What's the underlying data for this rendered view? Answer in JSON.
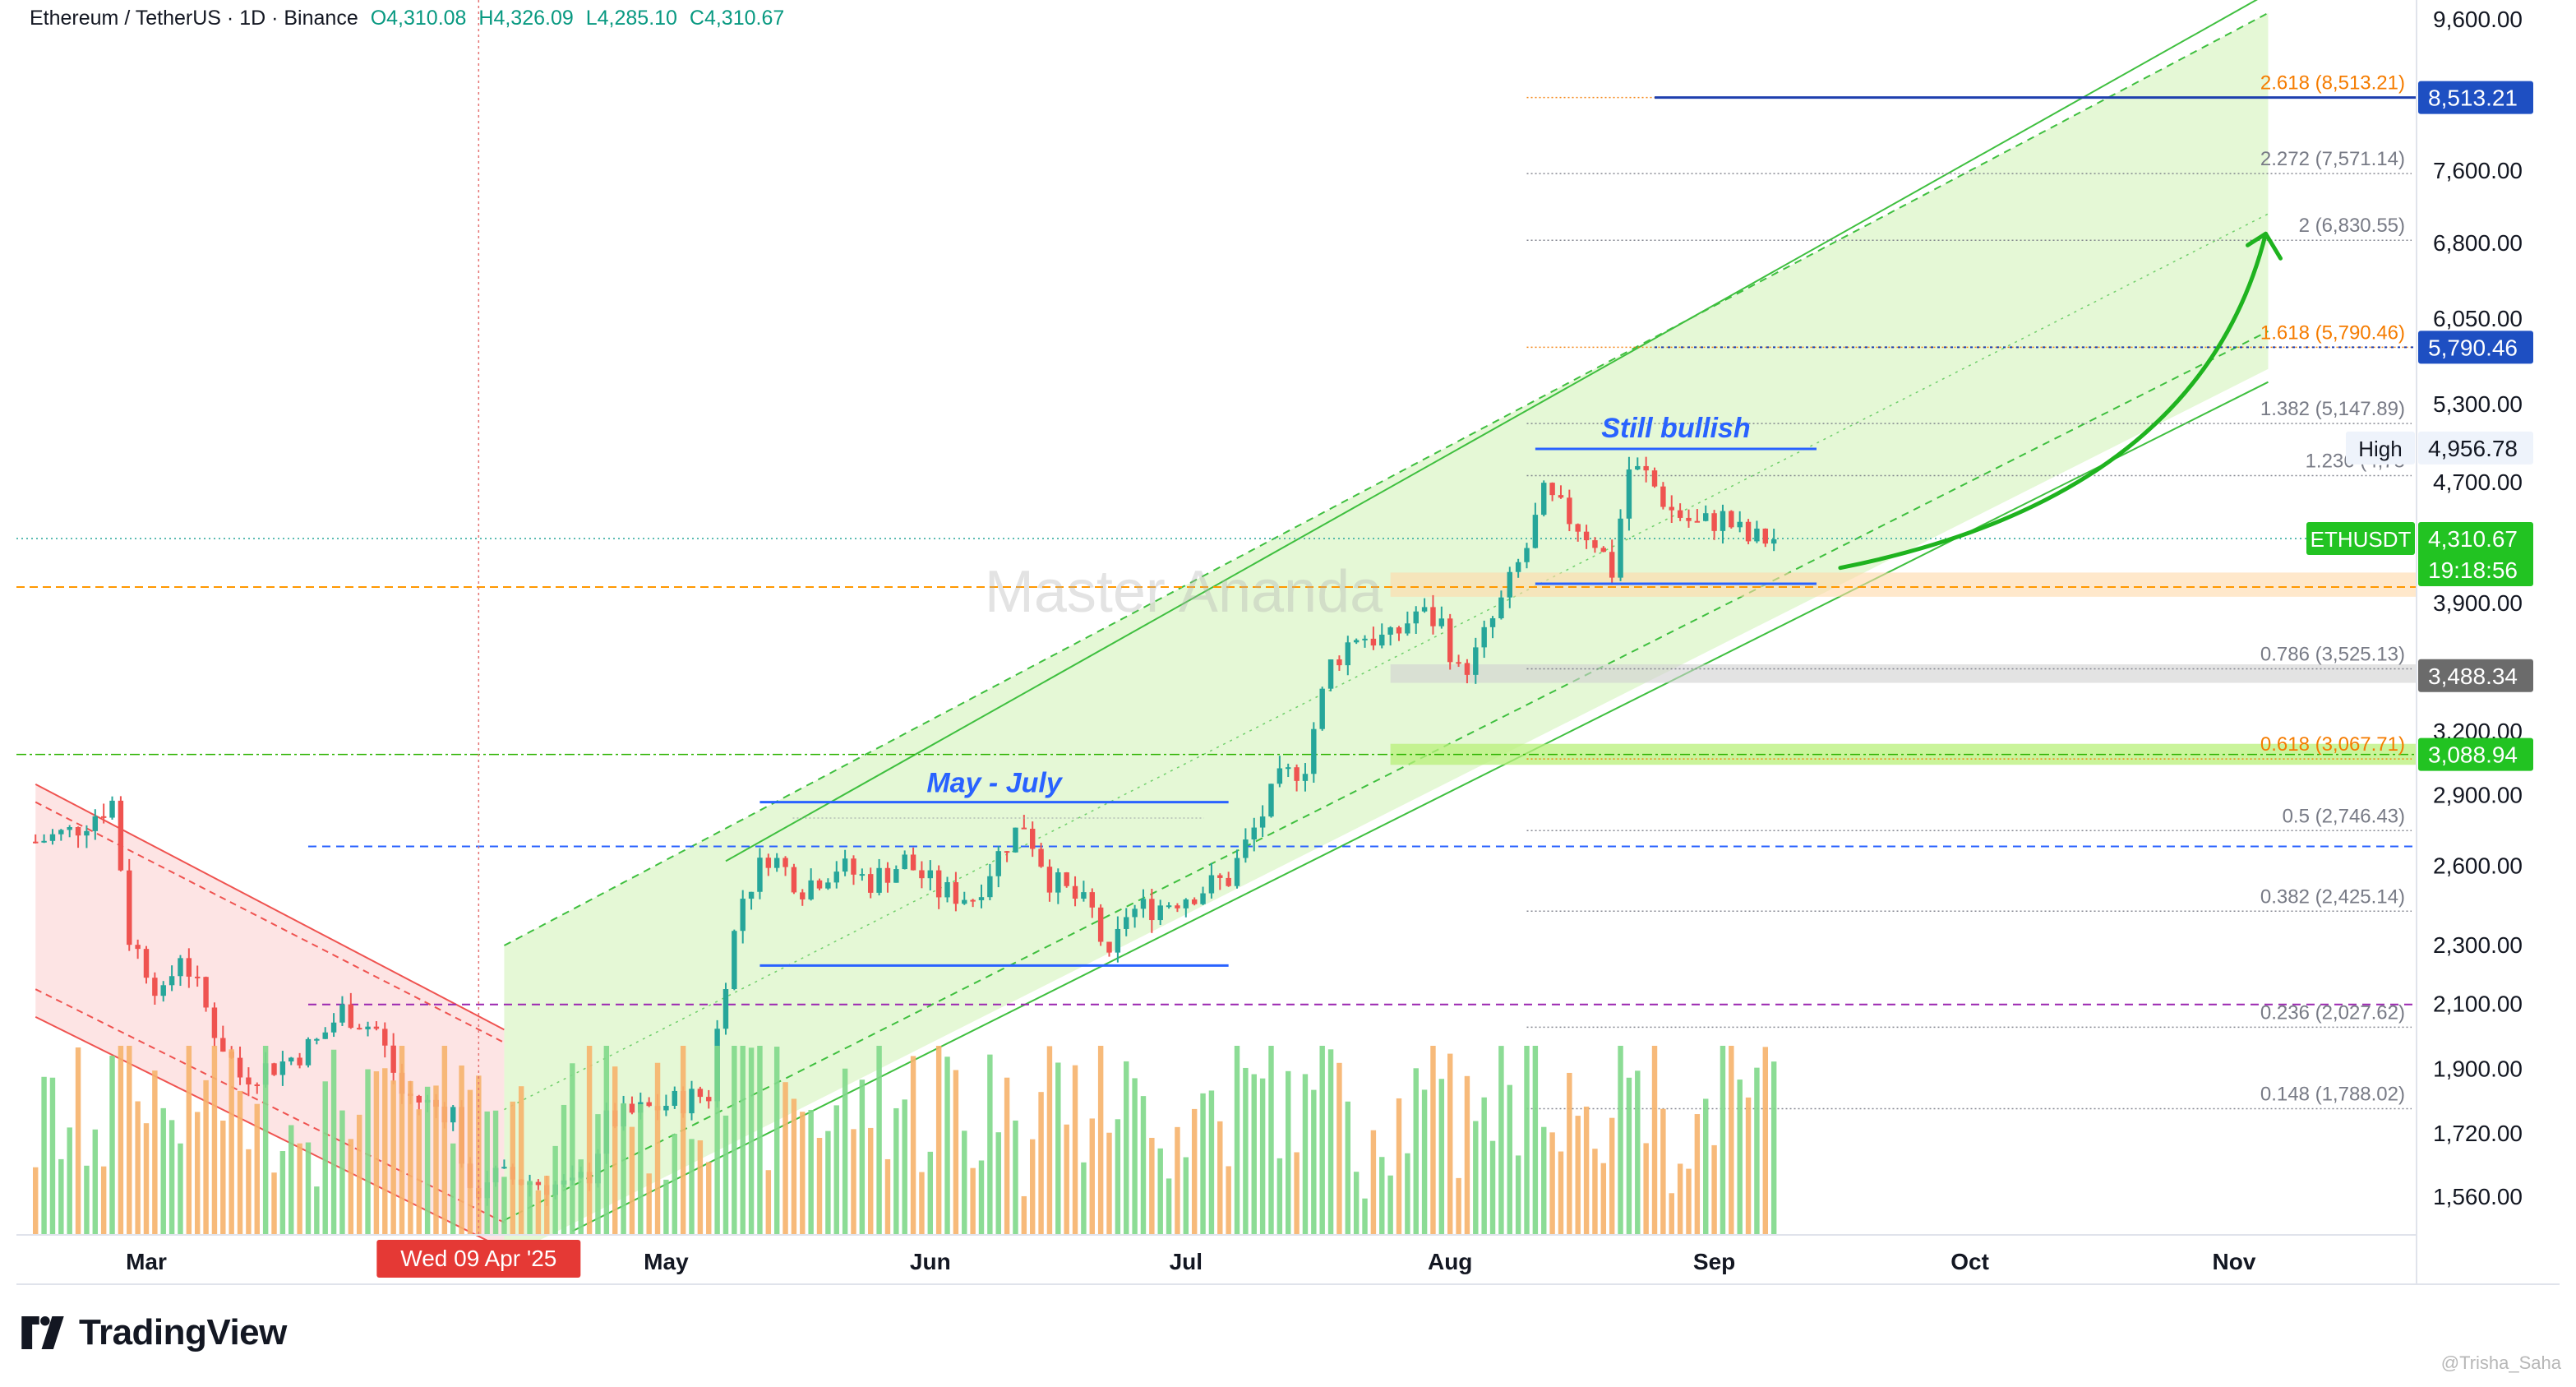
{
  "header": {
    "symbol": "Ethereum / TetherUS · 1D · Binance",
    "open": "O4,310.08",
    "high": "H4,326.09",
    "low": "L4,285.10",
    "close": "C4,310.67"
  },
  "brand": {
    "name": "TradingView"
  },
  "watermark": "Master Ananda",
  "credit": "@Trisha_Saha",
  "colors": {
    "up": "#26a69a",
    "down": "#ef5350",
    "channel": "#3fbf3f",
    "channel_fill": "#dcf5c8",
    "downchannel": "#ef5350",
    "downchannel_fill": "#fde1e1",
    "annotation": "#2962ff",
    "fib_orange": "#f57c00",
    "fib_gray": "#787b86",
    "price_label_green": "#22c322",
    "price_label_blue": "#1e4fc2",
    "price_label_gray": "#6b6b6b"
  },
  "chart_data": {
    "type": "candlestick",
    "title": "Ethereum / TetherUS · 1D · Binance",
    "y_scale": "log",
    "ylim": [
      1480,
      9700
    ],
    "x_tick_labels": [
      {
        "label": "Mar",
        "date": "2025-03-01"
      },
      {
        "label": "May",
        "date": "2025-05-01"
      },
      {
        "label": "Jun",
        "date": "2025-06-01"
      },
      {
        "label": "Jul",
        "date": "2025-07-01"
      },
      {
        "label": "Aug",
        "date": "2025-08-01"
      },
      {
        "label": "Sep",
        "date": "2025-09-01"
      },
      {
        "label": "Oct",
        "date": "2025-10-01"
      },
      {
        "label": "Nov",
        "date": "2025-11-01"
      }
    ],
    "y_tick_labels": [
      "9,600.00",
      "7,600.00",
      "6,800.00",
      "6,050.00",
      "5,300.00",
      "4,700.00",
      "3,900.00",
      "3,200.00",
      "2,900.00",
      "2,600.00",
      "2,300.00",
      "2,100.00",
      "1,900.00",
      "1,720.00",
      "1,560.00"
    ],
    "y_tick_values": [
      9600,
      7600,
      6800,
      6050,
      5300,
      4700,
      3900,
      3200,
      2900,
      2600,
      2300,
      2100,
      1900,
      1720,
      1560
    ],
    "crosshair": {
      "date": "2025-04-09",
      "label": "Wed 09 Apr '25"
    },
    "price_path": [
      [
        "2025-02-16",
        2700
      ],
      [
        "2025-02-20",
        2740
      ],
      [
        "2025-02-25",
        2870
      ],
      [
        "2025-02-27",
        2330
      ],
      [
        "2025-03-03",
        2120
      ],
      [
        "2025-03-05",
        2280
      ],
      [
        "2025-03-09",
        2020
      ],
      [
        "2025-03-12",
        1880
      ],
      [
        "2025-03-17",
        1920
      ],
      [
        "2025-03-21",
        1980
      ],
      [
        "2025-03-24",
        2080
      ],
      [
        "2025-03-28",
        2020
      ],
      [
        "2025-03-31",
        1830
      ],
      [
        "2025-04-03",
        1800
      ],
      [
        "2025-04-06",
        1780
      ],
      [
        "2025-04-08",
        1550
      ],
      [
        "2025-04-10",
        1610
      ],
      [
        "2025-04-15",
        1600
      ],
      [
        "2025-04-20",
        1580
      ],
      [
        "2025-04-22",
        1620
      ],
      [
        "2025-04-24",
        1750
      ],
      [
        "2025-04-28",
        1780
      ],
      [
        "2025-05-01",
        1800
      ],
      [
        "2025-05-06",
        1830
      ],
      [
        "2025-05-08",
        2200
      ],
      [
        "2025-05-10",
        2480
      ],
      [
        "2025-05-13",
        2650
      ],
      [
        "2025-05-17",
        2520
      ],
      [
        "2025-05-21",
        2600
      ],
      [
        "2025-05-25",
        2540
      ],
      [
        "2025-05-29",
        2620
      ],
      [
        "2025-06-02",
        2500
      ],
      [
        "2025-06-06",
        2480
      ],
      [
        "2025-06-10",
        2700
      ],
      [
        "2025-06-12",
        2780
      ],
      [
        "2025-06-15",
        2550
      ],
      [
        "2025-06-20",
        2420
      ],
      [
        "2025-06-22",
        2230
      ],
      [
        "2025-06-24",
        2420
      ],
      [
        "2025-06-28",
        2450
      ],
      [
        "2025-07-02",
        2500
      ],
      [
        "2025-07-06",
        2550
      ],
      [
        "2025-07-09",
        2750
      ],
      [
        "2025-07-12",
        2960
      ],
      [
        "2025-07-15",
        3050
      ],
      [
        "2025-07-18",
        3550
      ],
      [
        "2025-07-21",
        3720
      ],
      [
        "2025-07-25",
        3680
      ],
      [
        "2025-07-28",
        3850
      ],
      [
        "2025-07-31",
        3780
      ],
      [
        "2025-08-02",
        3500
      ],
      [
        "2025-08-04",
        3600
      ],
      [
        "2025-08-07",
        3900
      ],
      [
        "2025-08-10",
        4250
      ],
      [
        "2025-08-12",
        4600
      ],
      [
        "2025-08-15",
        4450
      ],
      [
        "2025-08-18",
        4300
      ],
      [
        "2025-08-20",
        4100
      ],
      [
        "2025-08-22",
        4800
      ],
      [
        "2025-08-24",
        4750
      ],
      [
        "2025-08-27",
        4500
      ],
      [
        "2025-08-30",
        4400
      ],
      [
        "2025-09-02",
        4450
      ],
      [
        "2025-09-05",
        4300
      ],
      [
        "2025-09-08",
        4310
      ]
    ],
    "volume_bars": "green and orange volume histogram along bottom",
    "fibonacci_levels": [
      {
        "label": "2.618 (8,513.21)",
        "value": 8513.21,
        "highlight": true
      },
      {
        "label": "2.272 (7,571.14)",
        "value": 7571.14,
        "highlight": false
      },
      {
        "label": "2 (6,830.55)",
        "value": 6830.55,
        "highlight": false
      },
      {
        "label": "1.618 (5,790.46)",
        "value": 5790.46,
        "highlight": true
      },
      {
        "label": "1.382 (5,147.89)",
        "value": 5147.89,
        "highlight": false
      },
      {
        "label": "1.236 (4,75",
        "value": 4750,
        "highlight": false
      },
      {
        "label": "0.786 (3,525.13)",
        "value": 3525.13,
        "highlight": false
      },
      {
        "label": "0.618 (3,067.71)",
        "value": 3067.71,
        "highlight": true
      },
      {
        "label": "0.5 (2,746.43)",
        "value": 2746.43,
        "highlight": false
      },
      {
        "label": "0.382 (2,425.14)",
        "value": 2425.14,
        "highlight": false
      },
      {
        "label": "0.236 (2,027.62)",
        "value": 2027.62,
        "highlight": false
      },
      {
        "label": "0.148 (1,788.02)",
        "value": 1788.02,
        "highlight": false
      }
    ],
    "price_labels": [
      {
        "text": "8,513.21",
        "value": 8513.21,
        "style": "blue"
      },
      {
        "text": "5,790.46",
        "value": 5790.46,
        "style": "blue"
      },
      {
        "text": "4,956.78",
        "value": 4956.78,
        "style": "plain",
        "tag": "High"
      },
      {
        "text": "4,310.67",
        "value": 4310.67,
        "style": "green",
        "tag": "ETHUSDT",
        "sub": "19:18:56"
      },
      {
        "text": "3,488.34",
        "value": 3488.34,
        "style": "gray"
      },
      {
        "text": "3,088.94",
        "value": 3088.94,
        "style": "green"
      }
    ],
    "annotations": [
      {
        "text": "May - July"
      },
      {
        "text": "Still bullish"
      }
    ],
    "zones": [
      {
        "name": "support-orange",
        "from": 3940,
        "to": 4090
      },
      {
        "name": "support-gray",
        "from": 3450,
        "to": 3550
      },
      {
        "name": "support-green",
        "from": 3040,
        "to": 3140
      }
    ]
  }
}
